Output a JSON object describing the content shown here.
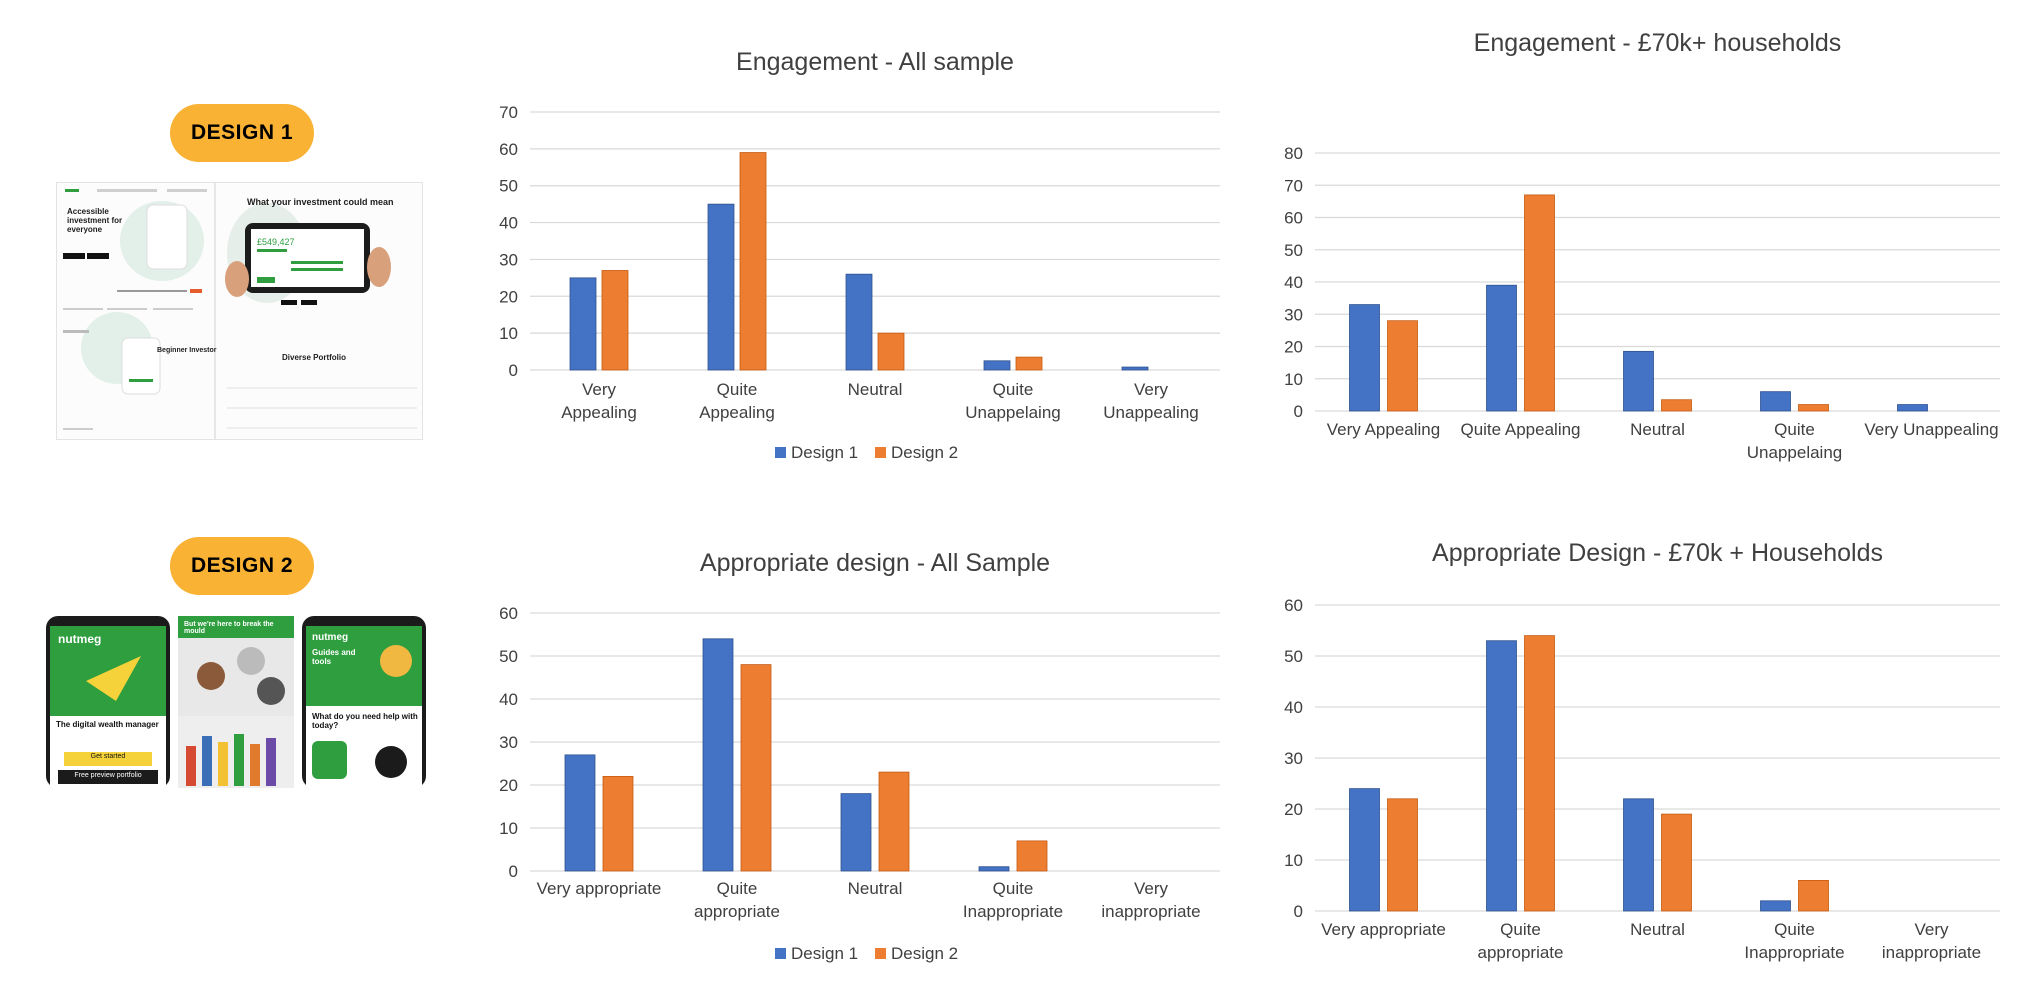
{
  "labels": {
    "design1_badge": "DESIGN 1",
    "design2_badge": "DESIGN 2"
  },
  "colors": {
    "design1": "#4472c4",
    "design2": "#ed7d31",
    "grid": "#d9d9d9",
    "badge": "#f9b233",
    "nutmeg_green": "#2e9e3f"
  },
  "mockup": {
    "design1_left_heading": "Accessible investment for everyone",
    "design1_right_heading": "What your investment could mean",
    "design1_amount": "£549,427",
    "design1_lower_left": "Beginner Investor",
    "design1_lower_right": "Diverse Portfolio",
    "design2_logo": "nutmeg",
    "design2_tagline": "The digital wealth manager",
    "design2_cta": "Get started",
    "design2_cta2": "Free preview portfolio",
    "design2_mid_heading": "But we're here to break the mould",
    "design2_right_heading": "Guides and tools",
    "design2_right_question": "What do you need help with today?"
  },
  "chart_data": [
    {
      "type": "bar",
      "title": "Engagement - All sample",
      "categories": [
        [
          "Very",
          "Appealing"
        ],
        [
          "Quite",
          "Appealing"
        ],
        [
          "Neutral"
        ],
        [
          "Quite",
          "Unappelaing"
        ],
        [
          "Very",
          "Unappealing"
        ]
      ],
      "series": [
        {
          "name": "Design 1",
          "values": [
            25,
            45,
            26,
            2.5,
            0.8
          ]
        },
        {
          "name": "Design 2",
          "values": [
            27,
            59,
            10,
            3.5,
            0
          ]
        }
      ],
      "ylim": [
        0,
        70
      ],
      "yticks": [
        0,
        10,
        20,
        30,
        40,
        50,
        60,
        70
      ],
      "legend": "bottom"
    },
    {
      "type": "bar",
      "title": "Engagement - £70k+ households",
      "categories": [
        [
          "Very Appealing"
        ],
        [
          "Quite Appealing"
        ],
        [
          "Neutral"
        ],
        [
          "Quite",
          "Unappelaing"
        ],
        [
          "Very Unappealing"
        ]
      ],
      "series": [
        {
          "name": "Design 1",
          "values": [
            33,
            39,
            18.5,
            6,
            2
          ]
        },
        {
          "name": "Design 2",
          "values": [
            28,
            67,
            3.5,
            2,
            0
          ]
        }
      ],
      "ylim": [
        0,
        80
      ],
      "yticks": [
        0,
        10,
        20,
        30,
        40,
        50,
        60,
        70,
        80
      ],
      "legend": "none"
    },
    {
      "type": "bar",
      "title": "Appropriate design  - All Sample",
      "categories": [
        [
          "Very appropriate"
        ],
        [
          "Quite",
          "appropriate"
        ],
        [
          "Neutral"
        ],
        [
          "Quite",
          "Inappropriate"
        ],
        [
          "Very",
          "inappropriate"
        ]
      ],
      "series": [
        {
          "name": "Design 1",
          "values": [
            27,
            54,
            18,
            1,
            0
          ]
        },
        {
          "name": "Design 2",
          "values": [
            22,
            48,
            23,
            7,
            0
          ]
        }
      ],
      "ylim": [
        0,
        60
      ],
      "yticks": [
        0,
        10,
        20,
        30,
        40,
        50,
        60
      ],
      "legend": "bottom"
    },
    {
      "type": "bar",
      "title": "Appropriate Design - £70k + Households",
      "categories": [
        [
          "Very appropriate"
        ],
        [
          "Quite",
          "appropriate"
        ],
        [
          "Neutral"
        ],
        [
          "Quite",
          "Inappropriate"
        ],
        [
          "Very",
          "inappropriate"
        ]
      ],
      "series": [
        {
          "name": "Design 1",
          "values": [
            24,
            53,
            22,
            2,
            0
          ]
        },
        {
          "name": "Design 2",
          "values": [
            22,
            54,
            19,
            6,
            0
          ]
        }
      ],
      "ylim": [
        0,
        60
      ],
      "yticks": [
        0,
        10,
        20,
        30,
        40,
        50,
        60
      ],
      "legend": "none"
    }
  ]
}
